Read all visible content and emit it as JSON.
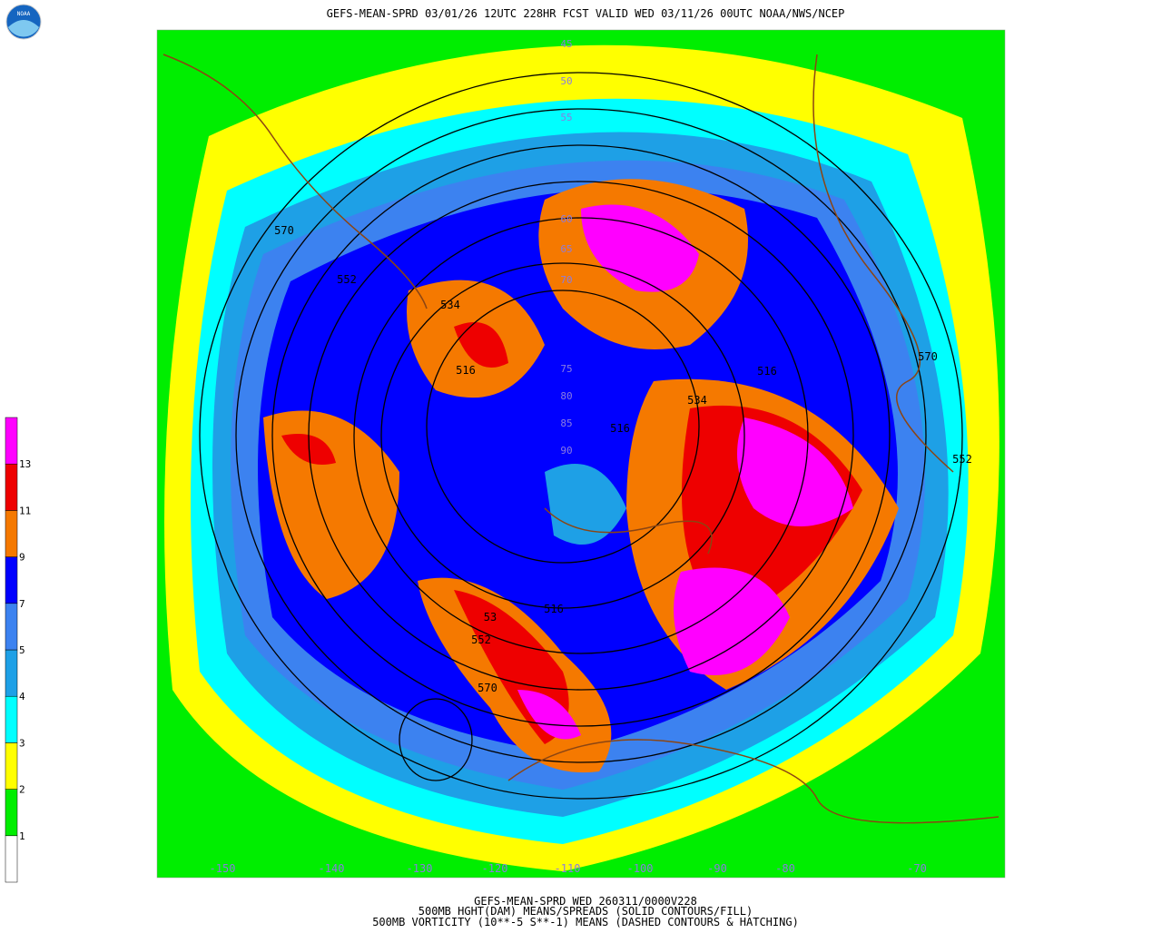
{
  "header": {
    "title": "GEFS-MEAN-SPRD 03/01/26 12UTC 228HR FCST VALID WED 03/11/26 00UTC NOAA/NWS/NCEP",
    "logo": "NOAA"
  },
  "colorbar": {
    "levels": [
      1,
      2,
      3,
      4,
      5,
      7,
      9,
      11,
      13
    ],
    "colors": [
      "#ffffff",
      "#00ee00",
      "#ffff00",
      "#00ffff",
      "#1ea0e6",
      "#3c82f0",
      "#0000ff",
      "#f57900",
      "#ee0000",
      "#ff00ff"
    ]
  },
  "map": {
    "contour_labels": [
      "570",
      "552",
      "534",
      "516",
      "534",
      "516",
      "516",
      "53",
      "552",
      "570",
      "516",
      "570",
      "552"
    ],
    "longitude_labels": [
      "-150",
      "-140",
      "-130",
      "-120",
      "-110",
      "-100",
      "-90",
      "-80",
      "-70"
    ],
    "latitude_labels": [
      "45",
      "50",
      "55",
      "60",
      "65",
      "70",
      "75",
      "80",
      "85",
      "90"
    ]
  },
  "footer": {
    "lines": [
      "GEFS-MEAN-SPRD WED 260311/0000V228",
      "500MB HGHT(DAM) MEANS/SPREADS (SOLID CONTOURS/FILL)",
      "500MB VORTICITY (10**-5 S**-1) MEANS (DASHED CONTOURS & HATCHING)"
    ]
  }
}
